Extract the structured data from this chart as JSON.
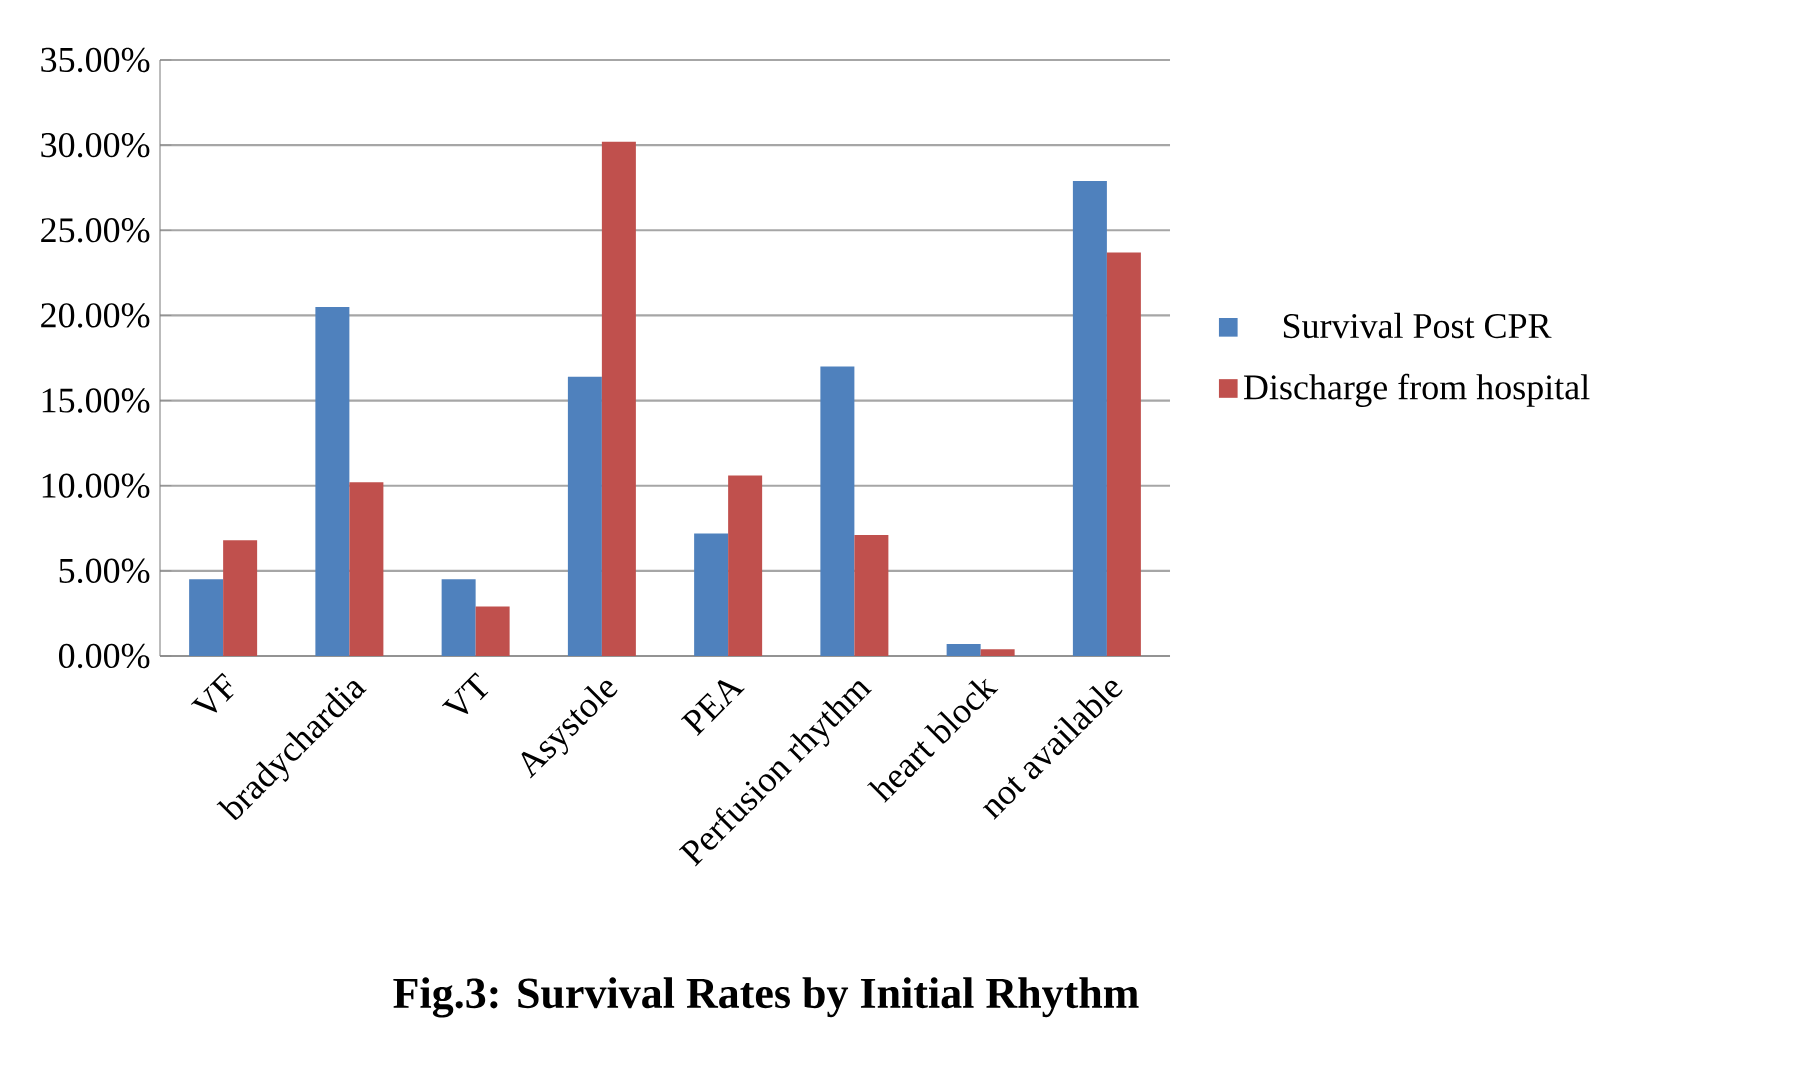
{
  "chart_data": {
    "type": "bar",
    "title": "Fig.3: Survival Rates by Initial Rhythm",
    "categories": [
      "VF",
      "bradychardia",
      "VT",
      "Asystole",
      "PEA",
      "Perfusion rhythm",
      "heart block",
      "not available"
    ],
    "series": [
      {
        "name": "Survival Post CPR",
        "color": "#4f81bd",
        "values": [
          4.5,
          20.5,
          4.5,
          16.4,
          7.2,
          17.0,
          0.7,
          27.9
        ]
      },
      {
        "name": "Discharge from hospital",
        "color": "#c0504d",
        "values": [
          6.8,
          10.2,
          2.9,
          30.2,
          10.6,
          7.1,
          0.4,
          23.7
        ]
      }
    ],
    "ylim": [
      0,
      35
    ],
    "yticks": [
      {
        "value": 0,
        "label": "0.00%"
      },
      {
        "value": 5,
        "label": "5.00%"
      },
      {
        "value": 10,
        "label": "10.00%"
      },
      {
        "value": 15,
        "label": "15.00%"
      },
      {
        "value": 20,
        "label": "20.00%"
      },
      {
        "value": 25,
        "label": "25.00%"
      },
      {
        "value": 30,
        "label": "30.00%"
      },
      {
        "value": 35,
        "label": "35.00%"
      }
    ],
    "grid": "y",
    "legend": "right"
  }
}
